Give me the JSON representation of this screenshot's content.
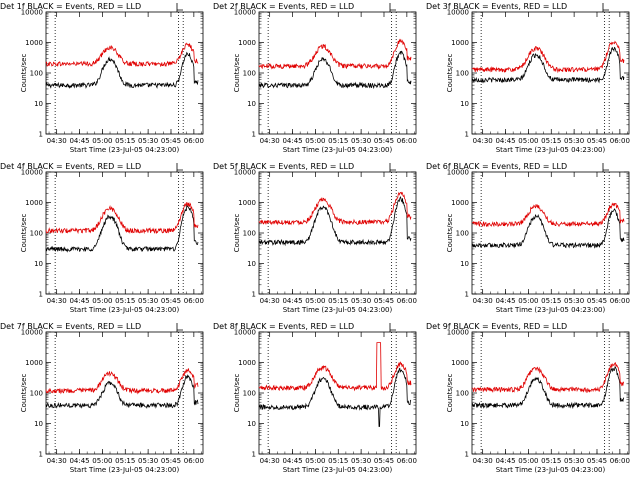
{
  "ytitle": "Counts/sec",
  "xtitle": "Start Time (23-Jul-05 04:23:00)",
  "xticks": [
    "04:30",
    "04:45",
    "05:00",
    "05:15",
    "05:30",
    "05:45",
    "06:00"
  ],
  "xtick_minutes": [
    7,
    22,
    37,
    52,
    67,
    82,
    97
  ],
  "yticks": [
    "1",
    "10",
    "100",
    "1000",
    "10000"
  ],
  "colors": {
    "events": "#000000",
    "lld": "#e00000"
  },
  "chart_data": [
    {
      "type": "line",
      "title": "Det 1f BLACK = Events, RED = LLD",
      "xlim": [
        0,
        103
      ],
      "ylim": [
        1,
        10000
      ],
      "yscale": "log",
      "dotted_x": [
        6,
        87,
        90
      ],
      "series": [
        {
          "name": "BLACK = Events",
          "base": 40,
          "peaks": [
            {
              "t": 42,
              "amp": 290,
              "w": 3.5
            },
            {
              "t": 93,
              "amp": 420,
              "w": 2.5
            }
          ],
          "end": 50
        },
        {
          "name": "RED = LLD",
          "base": 200,
          "peaks": [
            {
              "t": 42,
              "amp": 700,
              "w": 4
            },
            {
              "t": 93,
              "amp": 850,
              "w": 3
            }
          ],
          "end": 250
        }
      ]
    },
    {
      "type": "line",
      "title": "Det 2f BLACK = Events, RED = LLD",
      "xlim": [
        0,
        103
      ],
      "ylim": [
        1,
        10000
      ],
      "yscale": "log",
      "dotted_x": [
        6,
        87,
        90
      ],
      "series": [
        {
          "name": "BLACK = Events",
          "base": 40,
          "peaks": [
            {
              "t": 42,
              "amp": 280,
              "w": 3.5
            },
            {
              "t": 93,
              "amp": 450,
              "w": 2.5
            }
          ],
          "end": 50
        },
        {
          "name": "RED = LLD",
          "base": 170,
          "peaks": [
            {
              "t": 42,
              "amp": 750,
              "w": 4
            },
            {
              "t": 93,
              "amp": 1100,
              "w": 3
            }
          ],
          "end": 300
        }
      ]
    },
    {
      "type": "line",
      "title": "Det 3f BLACK = Events, RED = LLD",
      "xlim": [
        0,
        103
      ],
      "ylim": [
        1,
        10000
      ],
      "yscale": "log",
      "dotted_x": [
        6,
        87,
        90
      ],
      "series": [
        {
          "name": "BLACK = Events",
          "base": 60,
          "peaks": [
            {
              "t": 42,
              "amp": 400,
              "w": 3.5
            },
            {
              "t": 93,
              "amp": 650,
              "w": 2.5
            }
          ],
          "end": 70
        },
        {
          "name": "RED = LLD",
          "base": 130,
          "peaks": [
            {
              "t": 42,
              "amp": 650,
              "w": 4
            },
            {
              "t": 93,
              "amp": 1100,
              "w": 3
            }
          ],
          "end": 250
        }
      ]
    },
    {
      "type": "line",
      "title": "Det 4f BLACK = Events, RED = LLD",
      "xlim": [
        0,
        103
      ],
      "ylim": [
        1,
        10000
      ],
      "yscale": "log",
      "dotted_x": [
        6,
        87,
        90
      ],
      "series": [
        {
          "name": "BLACK = Events",
          "base": 30,
          "peaks": [
            {
              "t": 42,
              "amp": 350,
              "w": 3.5
            },
            {
              "t": 93,
              "amp": 700,
              "w": 2.5
            }
          ],
          "end": 50
        },
        {
          "name": "RED = LLD",
          "base": 120,
          "peaks": [
            {
              "t": 42,
              "amp": 650,
              "w": 4
            },
            {
              "t": 93,
              "amp": 900,
              "w": 3
            }
          ],
          "end": 180
        }
      ]
    },
    {
      "type": "line",
      "title": "Det 5f BLACK = Events, RED = LLD",
      "xlim": [
        0,
        103
      ],
      "ylim": [
        1,
        10000
      ],
      "yscale": "log",
      "dotted_x": [
        6,
        87,
        90
      ],
      "series": [
        {
          "name": "BLACK = Events",
          "base": 50,
          "peaks": [
            {
              "t": 42,
              "amp": 700,
              "w": 3.5
            },
            {
              "t": 93,
              "amp": 1300,
              "w": 2.5
            }
          ],
          "end": 70
        },
        {
          "name": "RED = LLD",
          "base": 230,
          "peaks": [
            {
              "t": 42,
              "amp": 1200,
              "w": 4
            },
            {
              "t": 93,
              "amp": 1900,
              "w": 3
            }
          ],
          "end": 350
        }
      ]
    },
    {
      "type": "line",
      "title": "Det 6f BLACK = Events, RED = LLD",
      "xlim": [
        0,
        103
      ],
      "ylim": [
        1,
        10000
      ],
      "yscale": "log",
      "dotted_x": [
        6,
        87,
        90
      ],
      "series": [
        {
          "name": "BLACK = Events",
          "base": 40,
          "peaks": [
            {
              "t": 42,
              "amp": 350,
              "w": 3.5
            },
            {
              "t": 93,
              "amp": 550,
              "w": 2.5
            }
          ],
          "end": 60
        },
        {
          "name": "RED = LLD",
          "base": 200,
          "peaks": [
            {
              "t": 42,
              "amp": 750,
              "w": 4
            },
            {
              "t": 93,
              "amp": 900,
              "w": 3
            }
          ],
          "end": 250
        }
      ]
    },
    {
      "type": "line",
      "title": "Det 7f BLACK = Events, RED = LLD",
      "xlim": [
        0,
        103
      ],
      "ylim": [
        1,
        10000
      ],
      "yscale": "log",
      "dotted_x": [
        6,
        87,
        90
      ],
      "series": [
        {
          "name": "BLACK = Events",
          "base": 40,
          "peaks": [
            {
              "t": 42,
              "amp": 220,
              "w": 3.5
            },
            {
              "t": 93,
              "amp": 350,
              "w": 2.5
            }
          ],
          "end": 50
        },
        {
          "name": "RED = LLD",
          "base": 120,
          "peaks": [
            {
              "t": 42,
              "amp": 450,
              "w": 4
            },
            {
              "t": 93,
              "amp": 550,
              "w": 3
            }
          ],
          "end": 180
        }
      ]
    },
    {
      "type": "line",
      "title": "Det 8f BLACK = Events, RED = LLD",
      "xlim": [
        0,
        103
      ],
      "ylim": [
        1,
        10000
      ],
      "yscale": "log",
      "dotted_x": [
        6,
        87,
        90
      ],
      "series": [
        {
          "name": "BLACK = Events",
          "base": 35,
          "peaks": [
            {
              "t": 42,
              "amp": 300,
              "w": 3.5
            },
            {
              "t": 93,
              "amp": 600,
              "w": 2.5
            }
          ],
          "end": 50,
          "dip": {
            "t": 79,
            "val": 8
          }
        },
        {
          "name": "RED = LLD",
          "base": 150,
          "peaks": [
            {
              "t": 42,
              "amp": 700,
              "w": 4
            },
            {
              "t": 93,
              "amp": 900,
              "w": 3
            }
          ],
          "end": 220,
          "box": {
            "t0": 77,
            "t1": 80,
            "val": 4500
          }
        }
      ]
    },
    {
      "type": "line",
      "title": "Det 9f BLACK = Events, RED = LLD",
      "xlim": [
        0,
        103
      ],
      "ylim": [
        1,
        10000
      ],
      "yscale": "log",
      "dotted_x": [
        6,
        87,
        90
      ],
      "series": [
        {
          "name": "BLACK = Events",
          "base": 40,
          "peaks": [
            {
              "t": 42,
              "amp": 300,
              "w": 3.5
            },
            {
              "t": 93,
              "amp": 650,
              "w": 2.5
            }
          ],
          "end": 60
        },
        {
          "name": "RED = LLD",
          "base": 130,
          "peaks": [
            {
              "t": 42,
              "amp": 650,
              "w": 4
            },
            {
              "t": 93,
              "amp": 900,
              "w": 3
            }
          ],
          "end": 200
        }
      ]
    }
  ]
}
